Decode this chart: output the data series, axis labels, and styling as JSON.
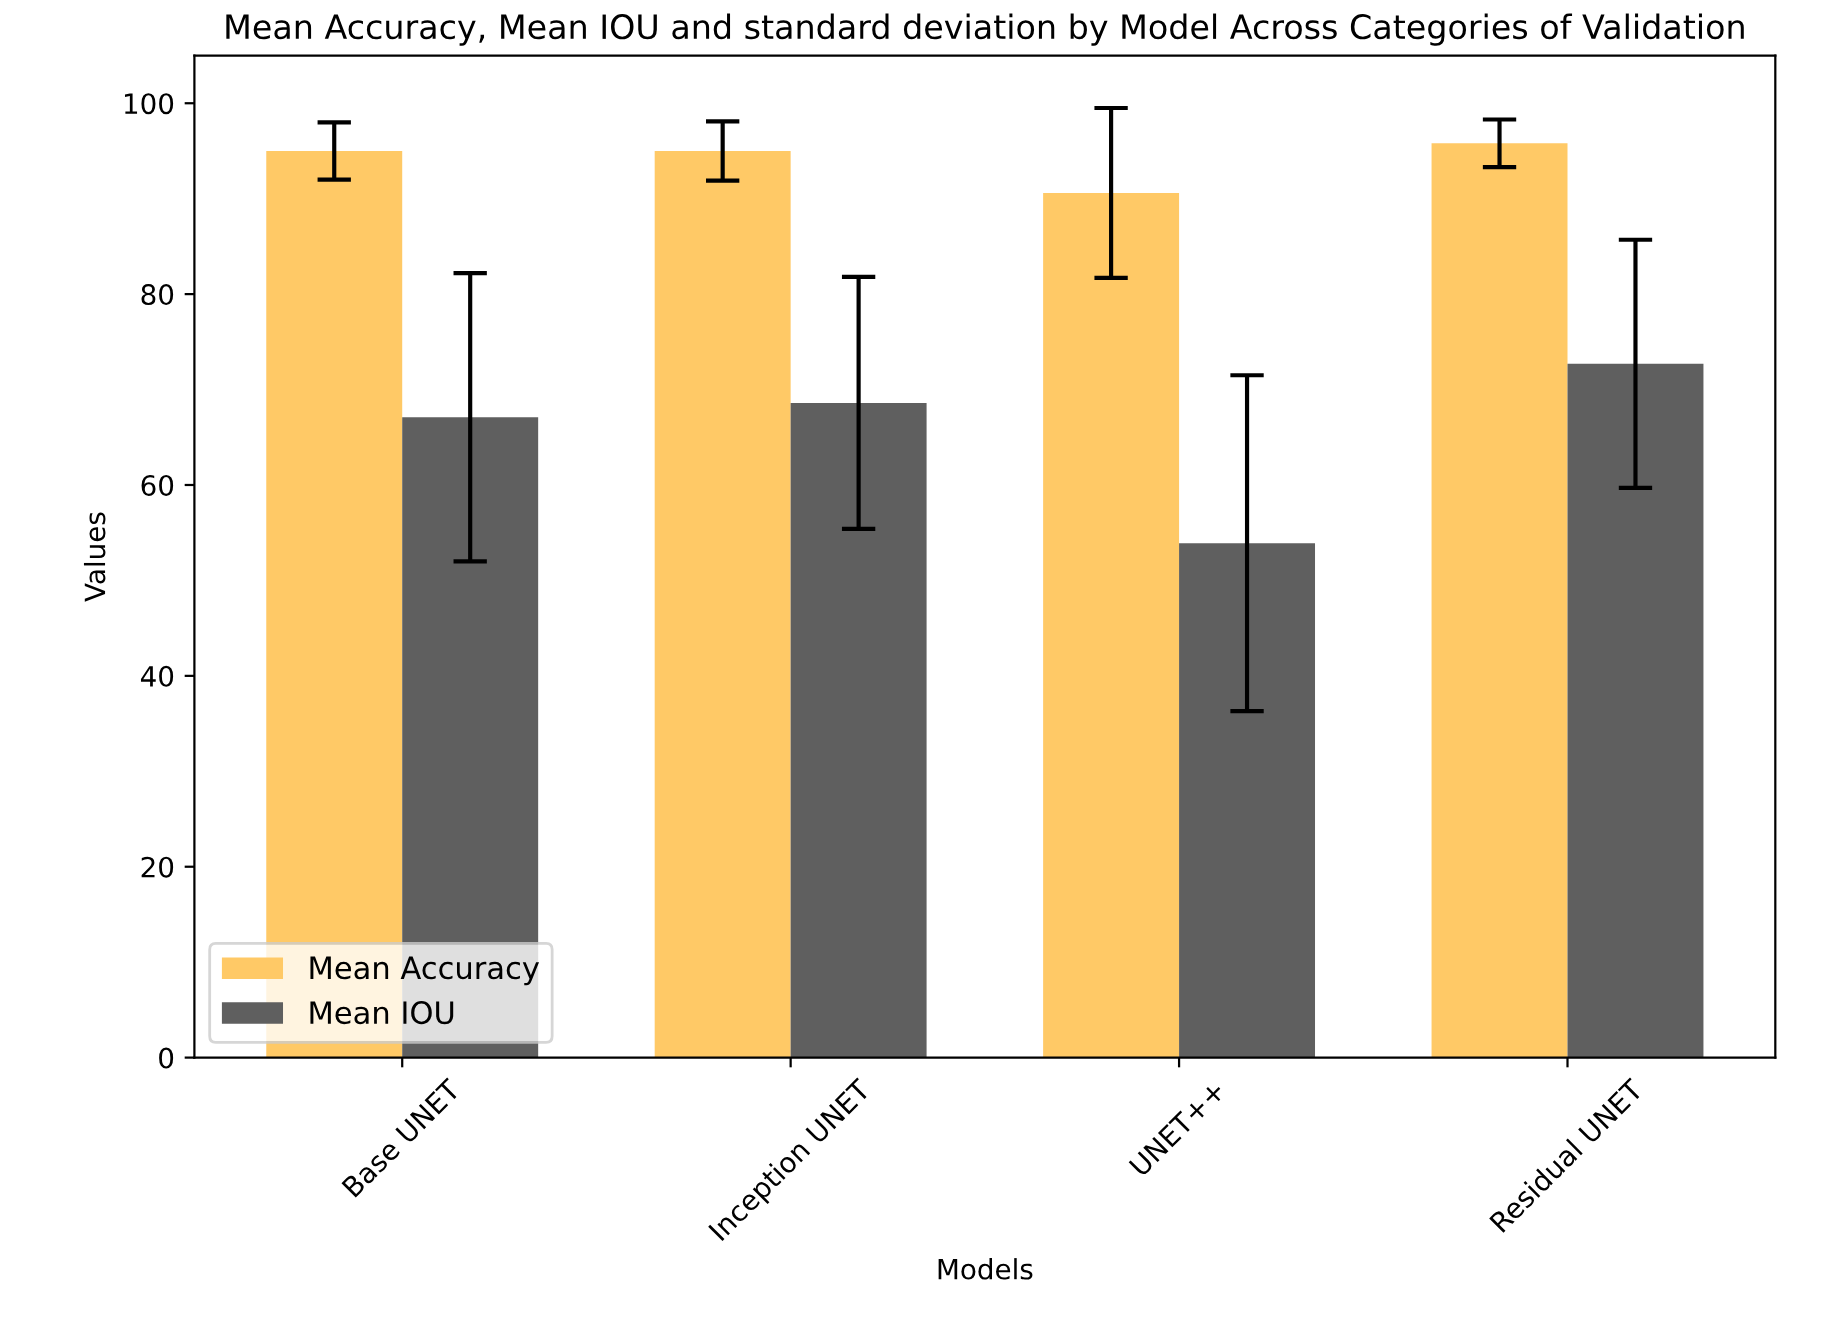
{
  "chart_data": {
    "type": "bar",
    "title": "Mean Accuracy, Mean IOU and standard deviation by Model Across Categories of Validation",
    "xlabel": "Models",
    "ylabel": "Values",
    "categories": [
      "Base UNET",
      "Inception UNET",
      "UNET++",
      "Residual UNET"
    ],
    "series": [
      {
        "name": "Mean Accuracy",
        "color": "#ffc966",
        "values": [
          95.0,
          95.0,
          90.6,
          95.8
        ],
        "errors": [
          3.0,
          3.1,
          8.9,
          2.5
        ]
      },
      {
        "name": "Mean IOU",
        "color": "#5f5f5f",
        "values": [
          67.1,
          68.6,
          53.9,
          72.7
        ],
        "errors": [
          15.1,
          13.2,
          17.6,
          13.0
        ]
      }
    ],
    "ylim": [
      0,
      105
    ],
    "yticks": [
      0,
      20,
      40,
      60,
      80,
      100
    ],
    "legend": "lower left",
    "grid": false
  }
}
